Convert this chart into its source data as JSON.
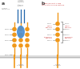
{
  "background": "#ffffff",
  "orange": "#F0981A",
  "blue": "#4A8FD4",
  "blue_dark": "#2166AC",
  "text_color": "#888888",
  "red_text": "#CC4444",
  "membrane_color": "#CCCCCC",
  "membrane_color2": "#BBBBBB",
  "panel_a_label": "a",
  "panel_b_label": "b",
  "figw": 1.0,
  "figh": 0.88,
  "dpi": 100
}
